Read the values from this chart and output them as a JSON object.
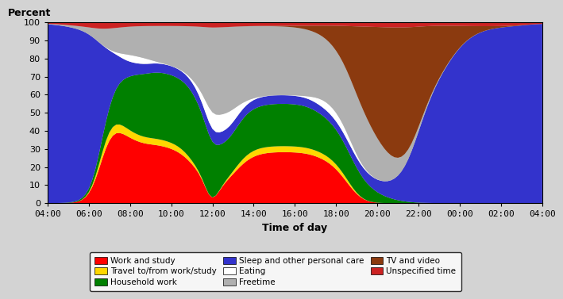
{
  "title": "Percent",
  "xlabel": "Time of day",
  "background_color": "#d3d3d3",
  "ylim": [
    0,
    100
  ],
  "xtick_labels": [
    "04:00",
    "06:00",
    "08:00",
    "10:00",
    "12:00",
    "14:00",
    "16:00",
    "18:00",
    "20:00",
    "22:00",
    "00:00",
    "02:00",
    "04:00"
  ],
  "series_order": [
    "work_study",
    "travel",
    "household",
    "sleep",
    "eating",
    "freetime",
    "tv",
    "unspecified"
  ],
  "series": {
    "work_study": {
      "label": "Work and study",
      "color": "#ff0000"
    },
    "travel": {
      "label": "Travel to/from work/study",
      "color": "#ffd700"
    },
    "household": {
      "label": "Household work",
      "color": "#008000"
    },
    "sleep": {
      "label": "Sleep and other personal care",
      "color": "#3333cc"
    },
    "eating": {
      "label": "Eating",
      "color": "#ffffff"
    },
    "freetime": {
      "label": "Freetime",
      "color": "#b0b0b0"
    },
    "tv": {
      "label": "TV and video",
      "color": "#8b3a0f"
    },
    "unspecified": {
      "label": "Unspecified time",
      "color": "#cc2222"
    }
  }
}
